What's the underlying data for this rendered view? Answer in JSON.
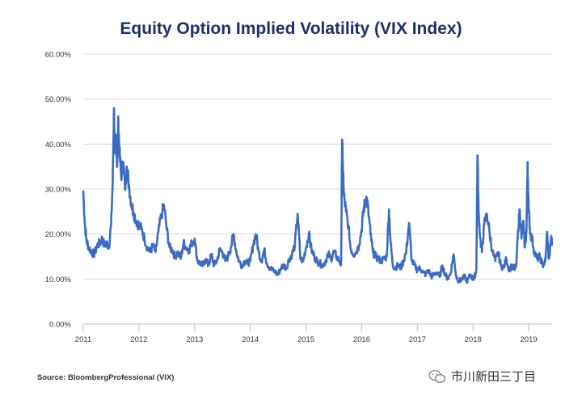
{
  "chart_data": {
    "type": "line",
    "title": "Equity Option Implied Volatility (VIX Index)",
    "xlabel": "",
    "ylabel": "",
    "ylim": [
      0,
      60
    ],
    "y_ticks": [
      "0.00%",
      "10.00%",
      "20.00%",
      "30.00%",
      "40.00%",
      "50.00%",
      "60.00%"
    ],
    "x_range": [
      2011.0,
      2019.42
    ],
    "x_ticks": [
      "2011",
      "2012",
      "2013",
      "2014",
      "2015",
      "2016",
      "2017",
      "2018",
      "2019"
    ],
    "gridlines": "horizontal",
    "series": [
      {
        "name": "VIX Index",
        "color": "#3c6bc4",
        "x": [
          2011.0,
          2011.03,
          2011.06,
          2011.1,
          2011.15,
          2011.2,
          2011.25,
          2011.3,
          2011.34,
          2011.38,
          2011.42,
          2011.46,
          2011.5,
          2011.53,
          2011.55,
          2011.57,
          2011.59,
          2011.61,
          2011.63,
          2011.65,
          2011.68,
          2011.72,
          2011.75,
          2011.78,
          2011.82,
          2011.86,
          2011.9,
          2011.95,
          2012.0,
          2012.05,
          2012.1,
          2012.15,
          2012.2,
          2012.25,
          2012.3,
          2012.35,
          2012.4,
          2012.45,
          2012.5,
          2012.55,
          2012.6,
          2012.65,
          2012.7,
          2012.75,
          2012.8,
          2012.85,
          2012.9,
          2012.95,
          2013.0,
          2013.05,
          2013.1,
          2013.15,
          2013.2,
          2013.25,
          2013.3,
          2013.35,
          2013.4,
          2013.45,
          2013.5,
          2013.55,
          2013.6,
          2013.65,
          2013.7,
          2013.75,
          2013.8,
          2013.85,
          2013.9,
          2013.95,
          2014.0,
          2014.05,
          2014.1,
          2014.15,
          2014.2,
          2014.25,
          2014.3,
          2014.35,
          2014.4,
          2014.45,
          2014.5,
          2014.55,
          2014.6,
          2014.65,
          2014.7,
          2014.75,
          2014.8,
          2014.85,
          2014.9,
          2014.95,
          2015.0,
          2015.05,
          2015.1,
          2015.15,
          2015.2,
          2015.25,
          2015.3,
          2015.35,
          2015.4,
          2015.45,
          2015.5,
          2015.55,
          2015.6,
          2015.63,
          2015.65,
          2015.68,
          2015.72,
          2015.76,
          2015.8,
          2015.85,
          2015.9,
          2015.95,
          2016.0,
          2016.03,
          2016.06,
          2016.09,
          2016.12,
          2016.16,
          2016.2,
          2016.25,
          2016.3,
          2016.35,
          2016.4,
          2016.45,
          2016.49,
          2016.52,
          2016.56,
          2016.6,
          2016.65,
          2016.7,
          2016.75,
          2016.8,
          2016.85,
          2016.9,
          2016.95,
          2017.0,
          2017.05,
          2017.1,
          2017.15,
          2017.2,
          2017.25,
          2017.3,
          2017.35,
          2017.4,
          2017.45,
          2017.5,
          2017.55,
          2017.6,
          2017.65,
          2017.7,
          2017.75,
          2017.8,
          2017.85,
          2017.9,
          2017.95,
          2018.0,
          2018.03,
          2018.06,
          2018.08,
          2018.1,
          2018.13,
          2018.16,
          2018.2,
          2018.25,
          2018.3,
          2018.35,
          2018.4,
          2018.45,
          2018.5,
          2018.55,
          2018.6,
          2018.65,
          2018.7,
          2018.75,
          2018.78,
          2018.81,
          2018.84,
          2018.87,
          2018.9,
          2018.93,
          2018.96,
          2018.98,
          2019.0,
          2019.03,
          2019.06,
          2019.1,
          2019.15,
          2019.2,
          2019.25,
          2019.3,
          2019.33,
          2019.36,
          2019.38,
          2019.4,
          2019.42
        ],
        "values": [
          29.5,
          22.0,
          18.5,
          17.0,
          16.0,
          15.5,
          17.5,
          18.0,
          19.0,
          17.5,
          18.0,
          17.0,
          22.0,
          32.0,
          48.0,
          38.0,
          42.0,
          35.0,
          45.5,
          38.0,
          33.0,
          36.0,
          30.0,
          35.0,
          31.0,
          27.0,
          25.0,
          23.0,
          22.0,
          21.0,
          19.0,
          17.0,
          16.0,
          17.5,
          16.0,
          20.5,
          24.0,
          26.5,
          21.0,
          17.0,
          16.5,
          15.0,
          16.0,
          14.5,
          18.0,
          17.0,
          16.5,
          18.0,
          19.0,
          14.0,
          13.5,
          13.0,
          14.5,
          13.0,
          15.5,
          13.0,
          14.0,
          16.5,
          16.0,
          14.0,
          15.0,
          17.0,
          20.0,
          16.0,
          14.0,
          13.0,
          14.0,
          13.5,
          14.0,
          17.5,
          20.0,
          16.0,
          14.0,
          16.5,
          13.5,
          12.5,
          12.0,
          11.5,
          11.0,
          12.5,
          13.0,
          12.5,
          14.5,
          15.5,
          17.5,
          24.5,
          14.5,
          14.0,
          17.0,
          20.0,
          16.5,
          15.0,
          14.0,
          13.5,
          13.0,
          14.0,
          15.5,
          14.5,
          16.0,
          15.0,
          14.0,
          13.0,
          41.0,
          28.5,
          25.0,
          22.0,
          17.0,
          15.5,
          16.0,
          17.5,
          21.0,
          25.0,
          27.0,
          28.0,
          25.0,
          20.0,
          16.0,
          15.0,
          14.5,
          14.0,
          14.5,
          15.0,
          25.5,
          18.0,
          13.0,
          12.5,
          13.0,
          12.5,
          14.0,
          16.0,
          22.5,
          14.0,
          13.0,
          12.0,
          12.5,
          11.5,
          11.0,
          12.0,
          10.5,
          11.0,
          11.5,
          10.5,
          13.0,
          11.0,
          10.0,
          11.5,
          15.5,
          10.5,
          9.5,
          10.0,
          10.5,
          9.5,
          11.0,
          10.0,
          10.5,
          12.0,
          37.5,
          25.0,
          19.0,
          16.0,
          22.0,
          24.5,
          20.0,
          16.0,
          14.0,
          16.0,
          13.0,
          12.5,
          14.5,
          12.0,
          13.0,
          12.0,
          13.5,
          21.0,
          25.5,
          19.0,
          23.0,
          17.0,
          20.5,
          36.0,
          25.0,
          20.0,
          19.0,
          16.0,
          14.5,
          15.0,
          13.0,
          14.0,
          20.5,
          14.5,
          16.0,
          19.0,
          18.0
        ]
      }
    ]
  },
  "footer": {
    "source": "Source: BloombergProfessional (VIX)",
    "watermark": "市川新田三丁目"
  }
}
